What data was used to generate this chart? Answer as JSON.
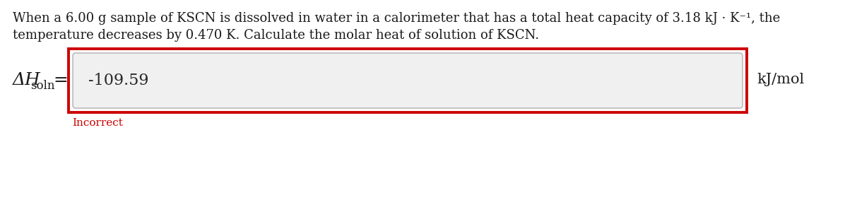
{
  "question_text_line1": "When a 6.00 g sample of KSCN is dissolved in water in a calorimeter that has a total heat capacity of 3.18 kJ · K⁻¹, the",
  "question_text_line2": "temperature decreases by 0.470 K. Calculate the molar heat of solution of KSCN.",
  "input_value": "-109.59",
  "unit_label": "kJ/mol",
  "label_delta": "Δ",
  "label_H": "H",
  "label_sub": "soln",
  "equals": "=",
  "incorrect_text": "Incorrect",
  "bg_color": "#ffffff",
  "outer_box_color": "#cc0000",
  "inner_box_bg": "#f0f0f0",
  "inner_box_border": "#b0b0b0",
  "text_color": "#1a1a1a",
  "incorrect_color": "#cc0000",
  "input_text_color": "#2a2a2a",
  "question_fontsize": 13.0,
  "input_fontsize": 16,
  "label_fontsize": 18,
  "sub_fontsize": 12,
  "unit_fontsize": 15,
  "incorrect_fontsize": 11
}
